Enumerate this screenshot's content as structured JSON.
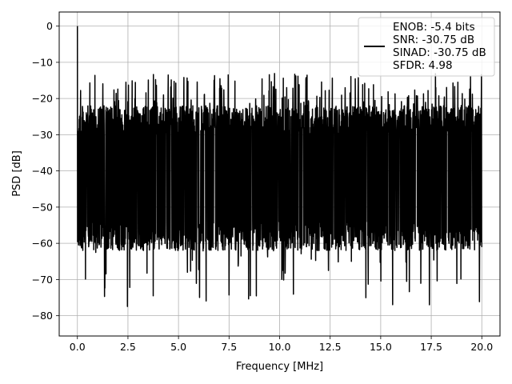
{
  "chart_data": {
    "type": "line",
    "xlabel": "Frequency [MHz]",
    "ylabel": "PSD [dB]",
    "xlim": [
      -0.9,
      20.9
    ],
    "ylim": [
      -85.6,
      3.9
    ],
    "x_ticks": [
      0.0,
      2.5,
      5.0,
      7.5,
      10.0,
      12.5,
      15.0,
      17.5,
      20.0
    ],
    "x_tick_labels": [
      "0.0",
      "2.5",
      "5.0",
      "7.5",
      "10.0",
      "12.5",
      "15.0",
      "17.5",
      "20.0"
    ],
    "y_ticks": [
      0,
      -10,
      -20,
      -30,
      -40,
      -50,
      -60,
      -70,
      -80
    ],
    "y_tick_labels": [
      "0",
      "−10",
      "−20",
      "−30",
      "−40",
      "−50",
      "−60",
      "−70",
      "−80"
    ],
    "grid": true,
    "legend_position": "top-right",
    "series": [
      {
        "color": "#000000",
        "x_range": [
          0.0,
          20.0
        ],
        "peak": {
          "x": 0.0,
          "y": 0.0
        },
        "typical_upper_envelope_db": -22,
        "typical_lower_envelope_db": -62,
        "approx_mean_db": -40,
        "min_db": -81.5
      }
    ],
    "legend_lines": [
      "ENOB: -5.4 bits",
      "SNR: -30.75 dB",
      "SINAD: -30.75 dB",
      "SFDR: 4.98"
    ]
  }
}
